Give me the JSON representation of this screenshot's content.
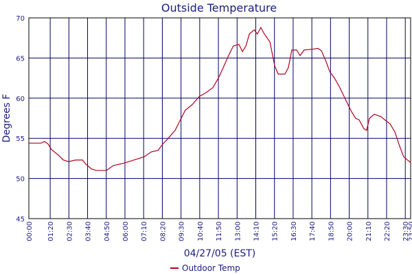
{
  "chart_data": {
    "type": "line",
    "title": "Outside Temperature",
    "ylabel": "Degrees F",
    "xlabel": "04/27/05 (EST)",
    "xlim": [
      0,
      1430
    ],
    "ylim": [
      45,
      70
    ],
    "yticks": [
      45,
      50,
      55,
      60,
      65,
      70
    ],
    "xticks": [
      {
        "value": 0,
        "label": "00:00"
      },
      {
        "value": 80,
        "label": "01:20"
      },
      {
        "value": 150,
        "label": "02:30"
      },
      {
        "value": 220,
        "label": "03:40"
      },
      {
        "value": 290,
        "label": "04:50"
      },
      {
        "value": 360,
        "label": "06:00"
      },
      {
        "value": 430,
        "label": "07:10"
      },
      {
        "value": 500,
        "label": "08:20"
      },
      {
        "value": 570,
        "label": "09:30"
      },
      {
        "value": 640,
        "label": "10:40"
      },
      {
        "value": 710,
        "label": "11:50"
      },
      {
        "value": 780,
        "label": "13:00"
      },
      {
        "value": 850,
        "label": "14:10"
      },
      {
        "value": 920,
        "label": "15:20"
      },
      {
        "value": 990,
        "label": "16:30"
      },
      {
        "value": 1060,
        "label": "17:40"
      },
      {
        "value": 1130,
        "label": "18:50"
      },
      {
        "value": 1200,
        "label": "20:00"
      },
      {
        "value": 1270,
        "label": "21:10"
      },
      {
        "value": 1340,
        "label": "22:20"
      },
      {
        "value": 1410,
        "label": "23:30"
      },
      {
        "value": 1430,
        "label": "23:50"
      }
    ],
    "grid": true,
    "legend": "bottom",
    "x": [
      0,
      46,
      59,
      72,
      85,
      111,
      129,
      149,
      175,
      201,
      213,
      234,
      252,
      291,
      316,
      355,
      394,
      432,
      458,
      484,
      502,
      522,
      548,
      566,
      586,
      612,
      638,
      664,
      689,
      710,
      728,
      748,
      766,
      787,
      800,
      813,
      826,
      844,
      856,
      869,
      882,
      903,
      921,
      934,
      959,
      972,
      985,
      1003,
      1016,
      1031,
      1062,
      1083,
      1096,
      1114,
      1127,
      1145,
      1165,
      1191,
      1209,
      1224,
      1237,
      1255,
      1265,
      1276,
      1294,
      1319,
      1337,
      1353,
      1371,
      1389,
      1404,
      1422,
      1430
    ],
    "series": [
      {
        "name": "Outdoor Temp",
        "color": "#b0001e",
        "values": [
          54.4,
          54.4,
          54.6,
          54.3,
          53.6,
          52.9,
          52.3,
          52.1,
          52.3,
          52.3,
          51.8,
          51.2,
          51.0,
          51.0,
          51.6,
          51.9,
          52.3,
          52.7,
          53.3,
          53.5,
          54.3,
          55.0,
          56.0,
          57.2,
          58.5,
          59.2,
          60.2,
          60.7,
          61.3,
          62.5,
          63.8,
          65.3,
          66.5,
          66.7,
          65.8,
          66.5,
          68.0,
          68.5,
          68.0,
          68.8,
          68.0,
          67.0,
          64.0,
          63.0,
          63.0,
          63.8,
          66.0,
          66.0,
          65.3,
          66.0,
          66.1,
          66.2,
          65.9,
          64.5,
          63.3,
          62.5,
          61.3,
          59.5,
          58.3,
          57.5,
          57.3,
          56.2,
          56.0,
          57.5,
          58.0,
          57.7,
          57.2,
          56.8,
          55.8,
          54.0,
          52.7,
          52.2,
          52.0
        ]
      }
    ]
  }
}
